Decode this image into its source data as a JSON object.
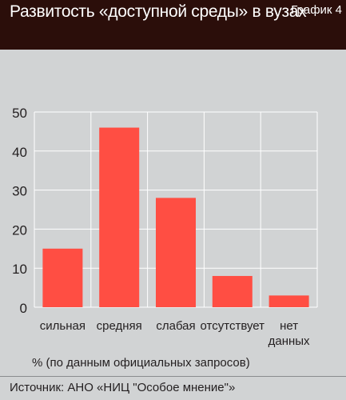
{
  "header": {
    "title": "Развитость «доступной среды» в вузах",
    "chart_number": "График 4"
  },
  "chart_data": {
    "type": "bar",
    "categories": [
      "сильная",
      "средняя",
      "слабая",
      "отсутствует",
      "нет данных"
    ],
    "values": [
      15,
      46,
      28,
      8,
      3
    ],
    "ylim": [
      0,
      50
    ],
    "yticks": [
      0,
      10,
      20,
      30,
      40,
      50
    ],
    "grid": true,
    "bar_color": "#ff4e43",
    "xlabel": "",
    "ylabel": ""
  },
  "footnote": "% (по данным официальных запросов)",
  "source": "Источник: АНО «НИЦ \"Особое мнение\"»",
  "colors": {
    "header_bg": "#2b0e0a",
    "page_bg": "#d1d3d4",
    "grid": "#ffffff"
  }
}
